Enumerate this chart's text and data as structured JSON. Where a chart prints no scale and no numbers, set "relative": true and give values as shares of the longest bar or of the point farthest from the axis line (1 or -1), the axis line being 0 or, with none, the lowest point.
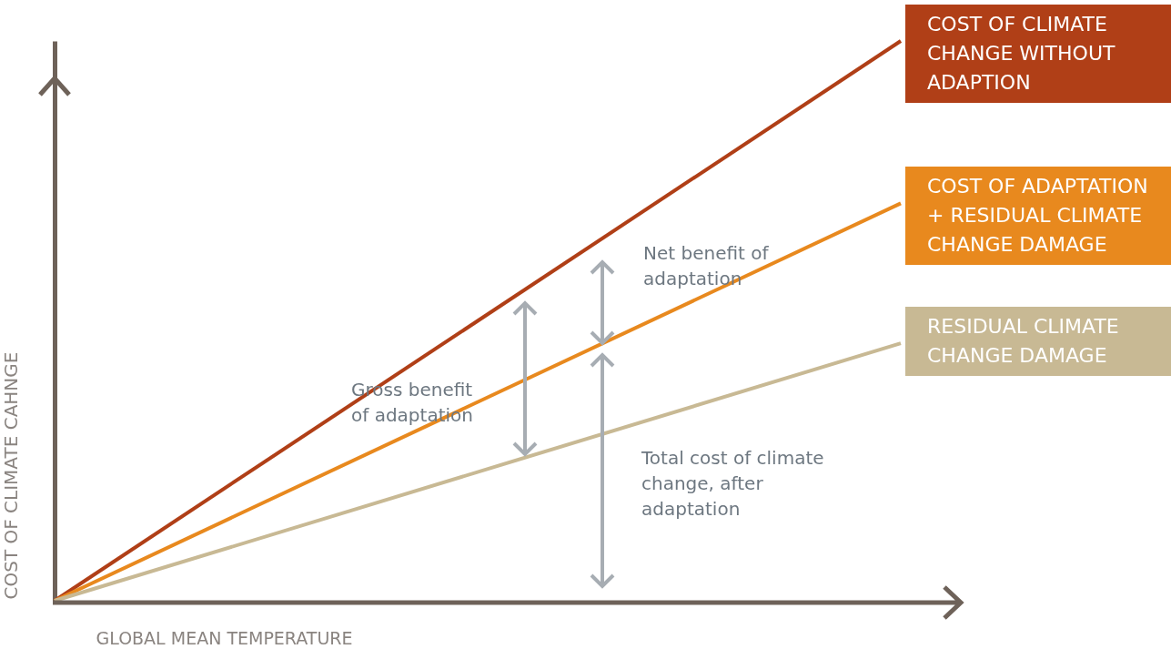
{
  "chart_data": {
    "type": "line",
    "relative": true,
    "xlabel": "GLOBAL MEAN TEMPERATURE",
    "ylabel": "COST OF CLIMATE CAHNGE",
    "categories": [
      null,
      null
    ],
    "legend": false,
    "marker": "none",
    "line_style": "solid",
    "series": [
      {
        "name": "COST OF CLIMATE CHANGE WITHOUT ADAPTION",
        "color": "#b03f17",
        "values": [
          0,
          1
        ]
      },
      {
        "name": "COST OF ADAPTATION + RESIDUAL CLIMATE CHANGE DAMAGE",
        "color": "#e8891e",
        "values": [
          0,
          0.71
        ]
      },
      {
        "name": "RESIDUAL CLIMATE CHANGE DAMAGE",
        "color": "#c8b994",
        "values": [
          0,
          0.46
        ]
      }
    ],
    "annotations": [
      "Net benefit of adaptation",
      "Gross benefit of adaptation",
      "Total cost of climate change, after adaptation"
    ]
  }
}
